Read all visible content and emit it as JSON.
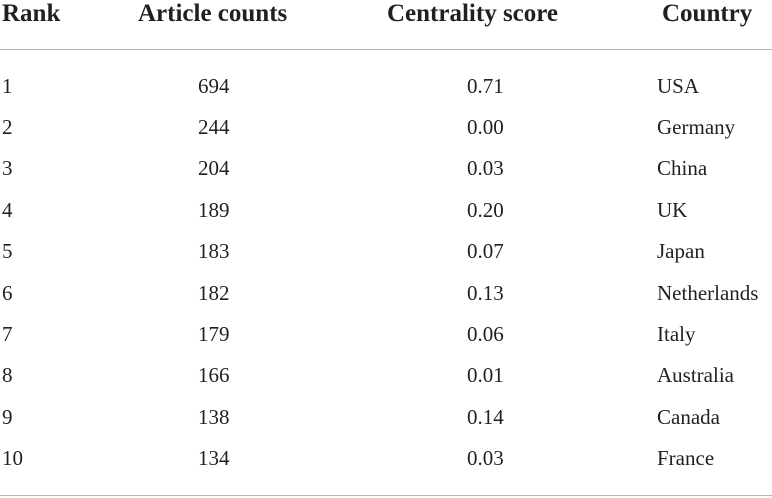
{
  "table": {
    "headers": [
      "Rank",
      "Article counts",
      "Centrality score",
      "Country"
    ],
    "rows": [
      [
        "1",
        "694",
        "0.71",
        "USA"
      ],
      [
        "2",
        "244",
        "0.00",
        "Germany"
      ],
      [
        "3",
        "204",
        "0.03",
        "China"
      ],
      [
        "4",
        "189",
        "0.20",
        "UK"
      ],
      [
        "5",
        "183",
        "0.07",
        "Japan"
      ],
      [
        "6",
        "182",
        "0.13",
        "Netherlands"
      ],
      [
        "7",
        "179",
        "0.06",
        "Italy"
      ],
      [
        "8",
        "166",
        "0.01",
        "Australia"
      ],
      [
        "9",
        "138",
        "0.14",
        "Canada"
      ],
      [
        "10",
        "134",
        "0.03",
        "France"
      ]
    ]
  }
}
